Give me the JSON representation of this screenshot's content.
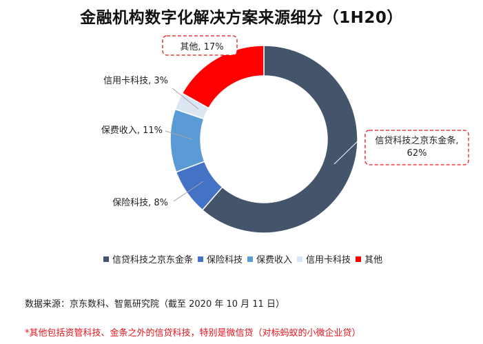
{
  "title": "金融机构数字化解决方案来源细分（1H20）",
  "chart_data": {
    "type": "pie",
    "donut": true,
    "unit": "%",
    "slices": [
      {
        "name": "信贷科技之京东金条",
        "value": 62,
        "label_line1": "信贷科技之京东金条,",
        "label_line2": "62%",
        "color": "#44546a",
        "boxed": true
      },
      {
        "name": "保险科技",
        "value": 8,
        "label_line1": "保险科技, 8%",
        "label_line2": "",
        "color": "#4472c4",
        "boxed": false
      },
      {
        "name": "保费收入",
        "value": 11,
        "label_line1": "保费收入, 11%",
        "label_line2": "",
        "color": "#5b9bd5",
        "boxed": false
      },
      {
        "name": "信用卡科技",
        "value": 3,
        "label_line1": "信用卡科技, 3%",
        "label_line2": "",
        "color": "#dce6f2",
        "boxed": false
      },
      {
        "name": "其他",
        "value": 17,
        "label_line1": "其他, 17%",
        "label_line2": "",
        "color": "#ff0000",
        "boxed": true
      }
    ],
    "legend_position": "bottom"
  },
  "legend": [
    "信贷科技之京东金条",
    "保险科技",
    "保费收入",
    "信用卡科技",
    "其他"
  ],
  "source": "数据来源：京东数科、智氪研究院（截至 2020 年 10 月 11 日）",
  "note": "*其他包括资管科技、金条之外的信贷科技，特别是微信贷（对标蚂蚁的小微企业贷）"
}
